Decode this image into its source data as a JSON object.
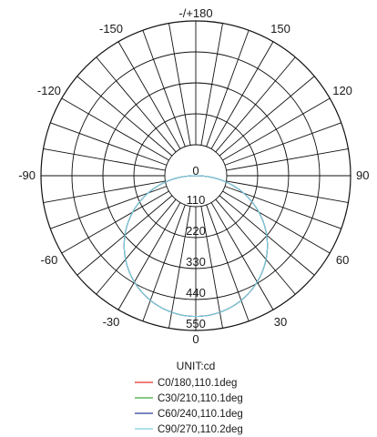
{
  "chart_data": {
    "type": "polar",
    "unit_label": "UNIT:cd",
    "angle_labels": [
      {
        "angle": 180,
        "text": "-/+180"
      },
      {
        "angle": 150,
        "text": "150"
      },
      {
        "angle": 120,
        "text": "120"
      },
      {
        "angle": 90,
        "text": "90"
      },
      {
        "angle": 60,
        "text": "60"
      },
      {
        "angle": 30,
        "text": "30"
      },
      {
        "angle": 0,
        "text": "0"
      },
      {
        "angle": -30,
        "text": "-30"
      },
      {
        "angle": -60,
        "text": "-60"
      },
      {
        "angle": -90,
        "text": "-90"
      },
      {
        "angle": -120,
        "text": "-120"
      },
      {
        "angle": -150,
        "text": "-150"
      }
    ],
    "radial_axis": {
      "max": 550,
      "ticks": [
        0,
        110,
        220,
        330,
        440,
        550
      ],
      "rings": [
        110,
        220,
        330,
        440,
        550
      ]
    },
    "angular_grid_step_deg": 10,
    "series": [
      {
        "name": "C0/180,110.1deg",
        "color": "#e8312f",
        "beam_angle_deg": 110.1,
        "peak_cd": 500
      },
      {
        "name": "C30/210,110.1deg",
        "color": "#3caa3c",
        "beam_angle_deg": 110.1,
        "peak_cd": 500
      },
      {
        "name": "C60/240,110.1deg",
        "color": "#2b3d99",
        "beam_angle_deg": 110.1,
        "peak_cd": 500
      },
      {
        "name": "C90/270,110.2deg",
        "color": "#7ccfe0",
        "beam_angle_deg": 110.2,
        "peak_cd": 500
      }
    ]
  }
}
